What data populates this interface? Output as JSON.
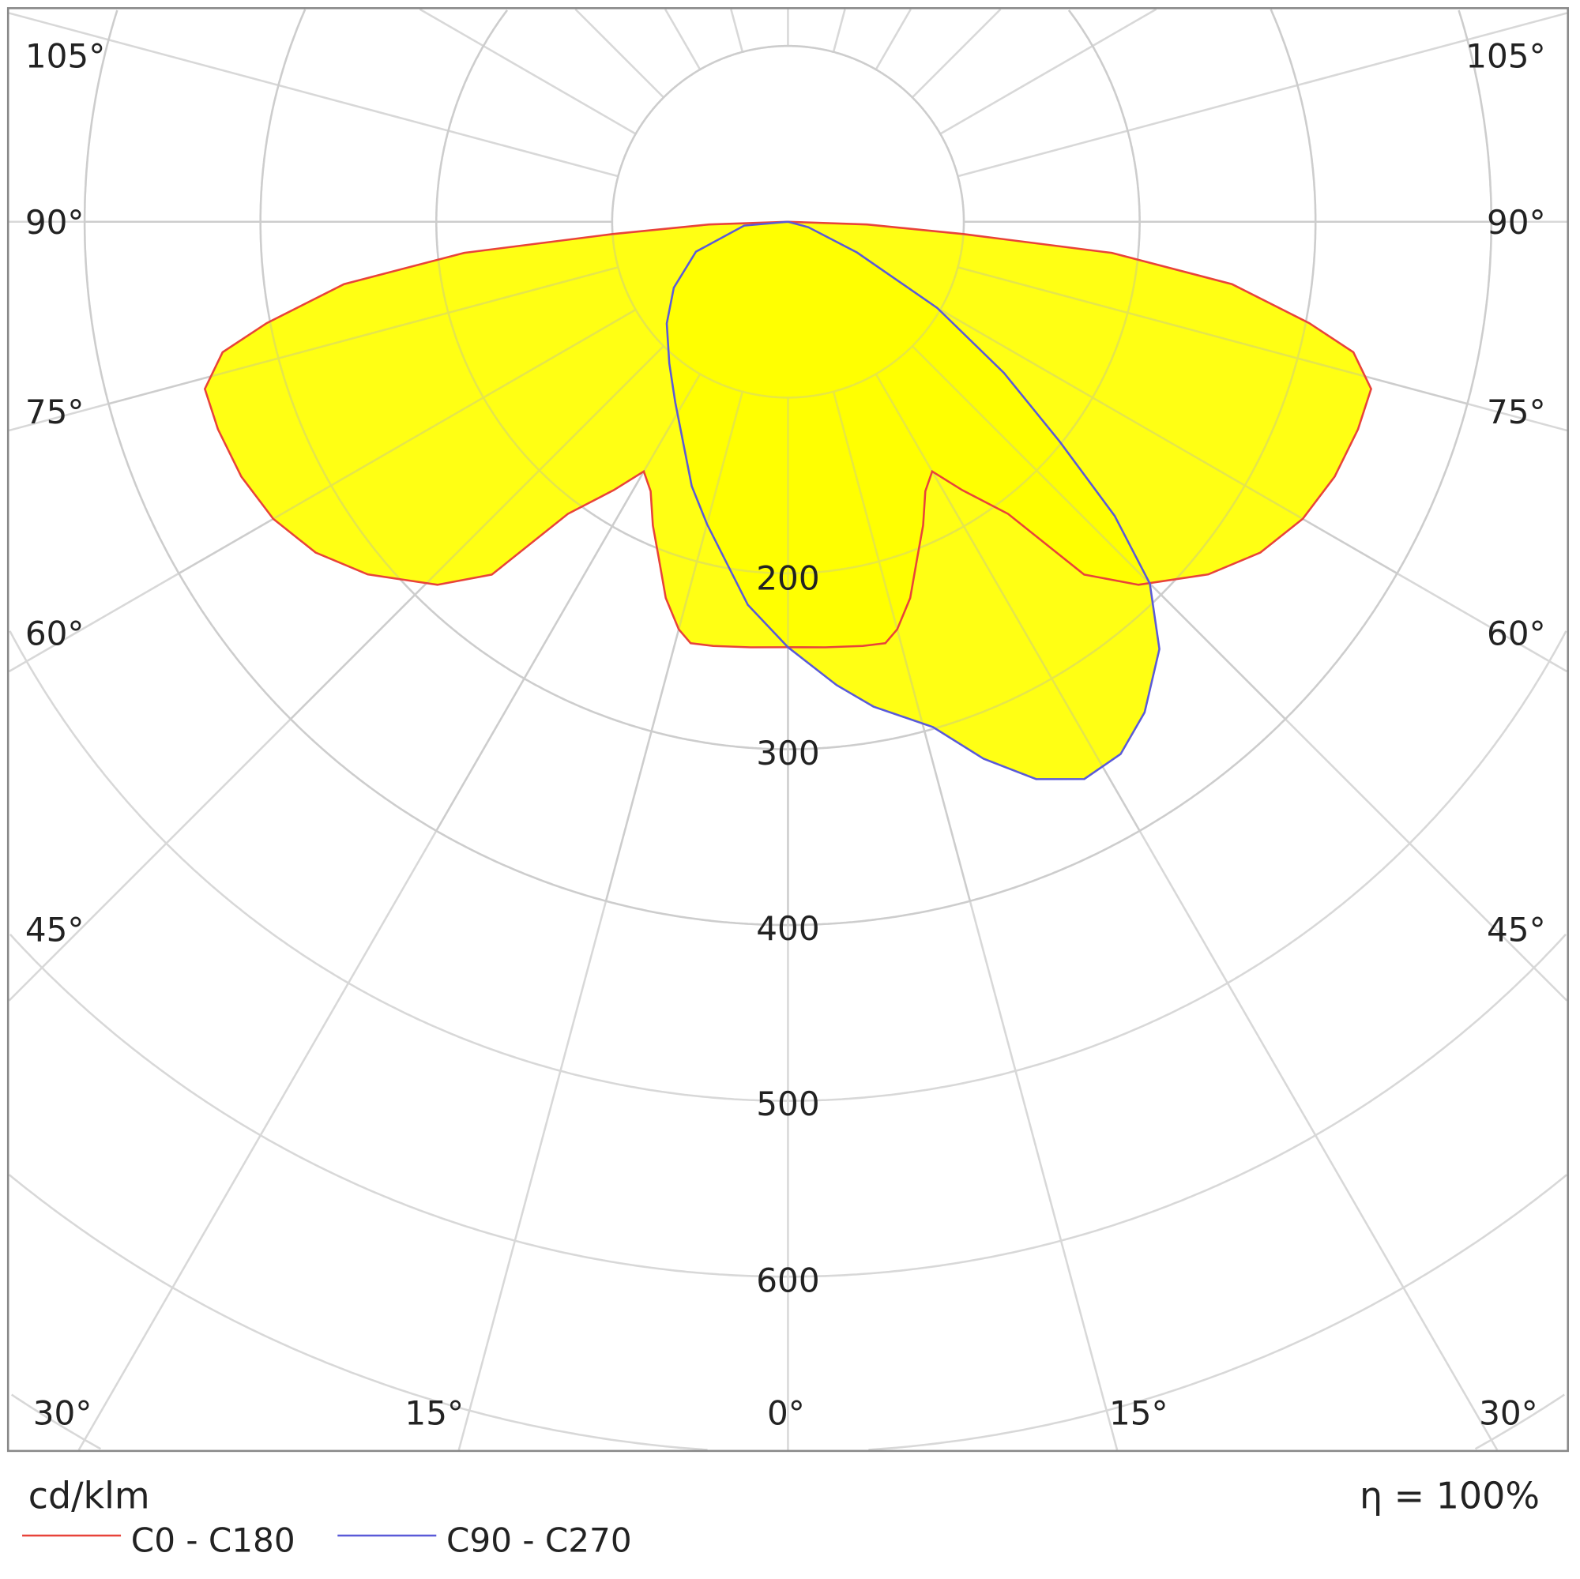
{
  "chart_data": {
    "type": "polar",
    "unit_label": "cd/klm",
    "efficiency_label": "η = 100%",
    "radial_ticks": [
      200,
      300,
      400,
      500,
      600
    ],
    "radial_tick_labels": [
      "200",
      "300",
      "400",
      "500",
      "600"
    ],
    "angle_side_labels": [
      "105°",
      "90°",
      "75°",
      "60°",
      "45°"
    ],
    "angle_bottom_labels": [
      "30°",
      "15°",
      "0°",
      "15°",
      "30°"
    ],
    "grid": true,
    "legend_placement": "bottom-left",
    "colors": {
      "fill": "#ffff00",
      "c0_c180": "#e8433a",
      "c90_c270": "#5a5ad8",
      "grid": "#d8d8d8"
    },
    "series": [
      {
        "name": "C0 - C180",
        "points": [
          [
            -90,
            0
          ],
          [
            -88,
            45
          ],
          [
            -86,
            100
          ],
          [
            -84.5,
            185
          ],
          [
            -82,
            255
          ],
          [
            -79,
            302
          ],
          [
            -77,
            330
          ],
          [
            -74,
            345
          ],
          [
            -70,
            345
          ],
          [
            -65,
            343
          ],
          [
            -60,
            338
          ],
          [
            -55,
            328
          ],
          [
            -50,
            312
          ],
          [
            -44,
            287
          ],
          [
            -40,
            262
          ],
          [
            -37,
            208
          ],
          [
            -33,
            182
          ],
          [
            -30,
            164
          ],
          [
            -27,
            172
          ],
          [
            -24,
            189
          ],
          [
            -21,
            205
          ],
          [
            -18,
            225
          ],
          [
            -15,
            240
          ],
          [
            -13,
            246
          ],
          [
            -10,
            245
          ],
          [
            -5,
            243
          ],
          [
            0,
            242
          ],
          [
            5,
            243
          ],
          [
            10,
            245
          ],
          [
            13,
            246
          ],
          [
            15,
            240
          ],
          [
            18,
            225
          ],
          [
            21,
            205
          ],
          [
            24,
            189
          ],
          [
            27,
            172
          ],
          [
            30,
            164
          ],
          [
            33,
            182
          ],
          [
            37,
            208
          ],
          [
            40,
            262
          ],
          [
            44,
            287
          ],
          [
            50,
            312
          ],
          [
            55,
            328
          ],
          [
            60,
            338
          ],
          [
            65,
            343
          ],
          [
            70,
            345
          ],
          [
            74,
            345
          ],
          [
            77,
            330
          ],
          [
            79,
            302
          ],
          [
            82,
            255
          ],
          [
            84.5,
            185
          ],
          [
            86,
            100
          ],
          [
            88,
            45
          ],
          [
            90,
            0
          ]
        ]
      },
      {
        "name": "C90 - C270",
        "points": [
          [
            -90,
            0
          ],
          [
            -85,
            25
          ],
          [
            -72,
            55
          ],
          [
            -60,
            75
          ],
          [
            -50,
            90
          ],
          [
            -40,
            105
          ],
          [
            -32,
            121
          ],
          [
            -20,
            160
          ],
          [
            -15,
            178
          ],
          [
            -6,
            219
          ],
          [
            0,
            242
          ],
          [
            6,
            265
          ],
          [
            10,
            280
          ],
          [
            16,
            299
          ],
          [
            20,
            325
          ],
          [
            24,
            347
          ],
          [
            28,
            359
          ],
          [
            32,
            357
          ],
          [
            36,
            345
          ],
          [
            41,
            322
          ],
          [
            45,
            291
          ],
          [
            48,
            250
          ],
          [
            51,
            199
          ],
          [
            55,
            150
          ],
          [
            60,
            98
          ],
          [
            66,
            43
          ],
          [
            75,
            12
          ],
          [
            90,
            0
          ]
        ]
      }
    ]
  }
}
